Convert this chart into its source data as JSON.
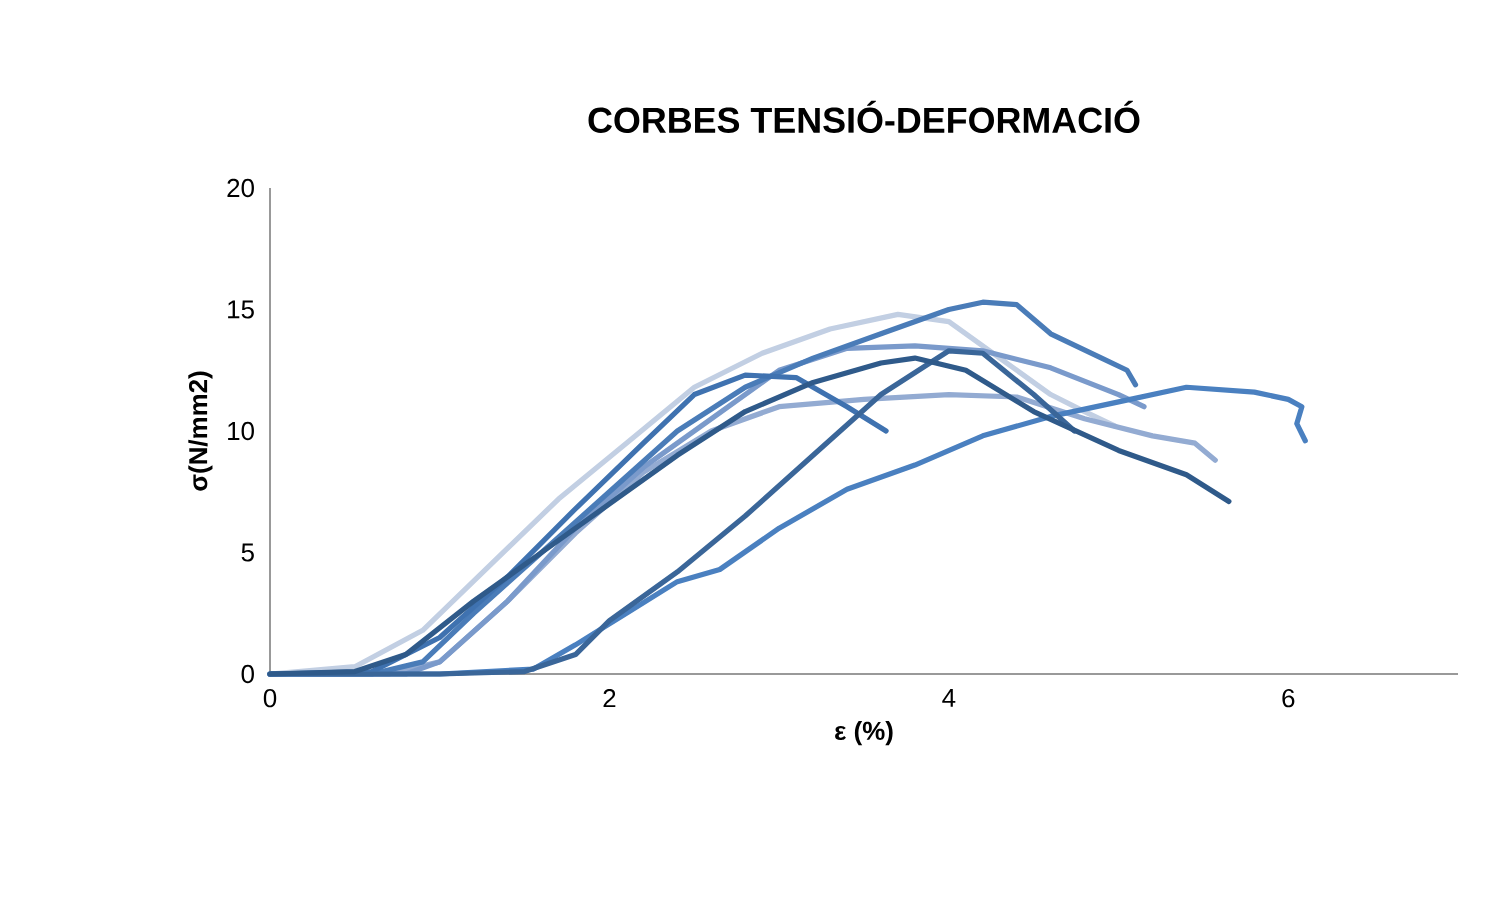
{
  "chart_data": {
    "type": "line",
    "title": "CORBES TENSIÓ-DEFORMACIÓ",
    "xlabel": "ε (%)",
    "ylabel": "σ(N/mm2)",
    "xlim": [
      0,
      7
    ],
    "ylim": [
      0,
      20
    ],
    "xticks": [
      0,
      2,
      4,
      6
    ],
    "yticks": [
      0,
      5,
      10,
      15,
      20
    ],
    "grid": false,
    "marker": "none",
    "line_style": "solid",
    "series": [
      {
        "color": "#c2cfe3",
        "x": [
          0,
          0.5,
          0.9,
          1.3,
          1.7,
          2.1,
          2.5,
          2.9,
          3.3,
          3.7,
          4.0,
          4.3,
          4.6,
          4.8,
          4.98
        ],
        "values": [
          0,
          0.3,
          1.8,
          4.5,
          7.2,
          9.5,
          11.8,
          13.2,
          14.2,
          14.8,
          14.5,
          13,
          11.5,
          10.8,
          10.2
        ]
      },
      {
        "color": "#93abd2",
        "x": [
          0,
          0.7,
          1.0,
          1.4,
          1.8,
          2.2,
          2.6,
          3.0,
          3.5,
          4.0,
          4.4,
          4.8,
          5.2,
          5.45,
          5.57
        ],
        "values": [
          0,
          0,
          0.5,
          3,
          5.8,
          8.3,
          10,
          11,
          11.3,
          11.5,
          11.4,
          10.5,
          9.8,
          9.5,
          8.8
        ]
      },
      {
        "color": "#7a9acb",
        "x": [
          0,
          0.8,
          1.0,
          1.4,
          1.8,
          2.2,
          2.6,
          3.0,
          3.4,
          3.8,
          4.2,
          4.6,
          5.0,
          5.15
        ],
        "values": [
          0,
          0,
          0.5,
          3,
          6,
          8.5,
          10.5,
          12.5,
          13.4,
          13.5,
          13.3,
          12.6,
          11.5,
          11.0
        ]
      },
      {
        "color": "#4a7cb8",
        "x": [
          0,
          0.6,
          0.9,
          1.2,
          1.6,
          2,
          2.4,
          2.8,
          3.2,
          3.6,
          4.0,
          4.2,
          4.4,
          4.6,
          4.9,
          5.05,
          5.1
        ],
        "values": [
          0,
          0,
          0.5,
          2.5,
          5,
          7.5,
          10,
          11.8,
          13,
          14,
          15,
          15.3,
          15.2,
          14,
          13,
          12.5,
          11.9
        ]
      },
      {
        "color": "#3f72b0",
        "x": [
          0,
          0.6,
          1.0,
          1.4,
          1.8,
          2.2,
          2.5,
          2.8,
          3.1,
          3.4,
          3.63
        ],
        "values": [
          0,
          0.1,
          1.5,
          4.0,
          6.8,
          9.5,
          11.5,
          12.3,
          12.2,
          11,
          10
        ]
      },
      {
        "color": "#4a80c0",
        "x": [
          0,
          1.0,
          1.55,
          1.8,
          2.1,
          2.4,
          2.65,
          3.0,
          3.4,
          3.8,
          4.2,
          4.6,
          5.0,
          5.4,
          5.8,
          6.0,
          6.08,
          6.05,
          6.1
        ],
        "values": [
          0,
          0,
          0.2,
          1.2,
          2.5,
          3.8,
          4.3,
          6,
          7.6,
          8.6,
          9.8,
          10.6,
          11.2,
          11.8,
          11.6,
          11.3,
          11,
          10.3,
          9.6
        ]
      },
      {
        "color": "#3a6699",
        "x": [
          0,
          1.0,
          1.5,
          1.8,
          2.0,
          2.4,
          2.8,
          3.2,
          3.6,
          4.0,
          4.2,
          4.5,
          4.74
        ],
        "values": [
          0,
          0,
          0.1,
          0.8,
          2.2,
          4.2,
          6.5,
          9,
          11.5,
          13.3,
          13.2,
          11.5,
          10
        ]
      },
      {
        "color": "#2f5a8a",
        "x": [
          0,
          0.5,
          0.8,
          1.2,
          1.6,
          2,
          2.4,
          2.8,
          3.2,
          3.6,
          3.8,
          4.1,
          4.5,
          5.0,
          5.4,
          5.65
        ],
        "values": [
          0,
          0.1,
          0.8,
          3,
          5,
          7,
          9,
          10.8,
          12,
          12.8,
          13,
          12.5,
          10.8,
          9.2,
          8.2,
          7.1
        ]
      }
    ]
  }
}
